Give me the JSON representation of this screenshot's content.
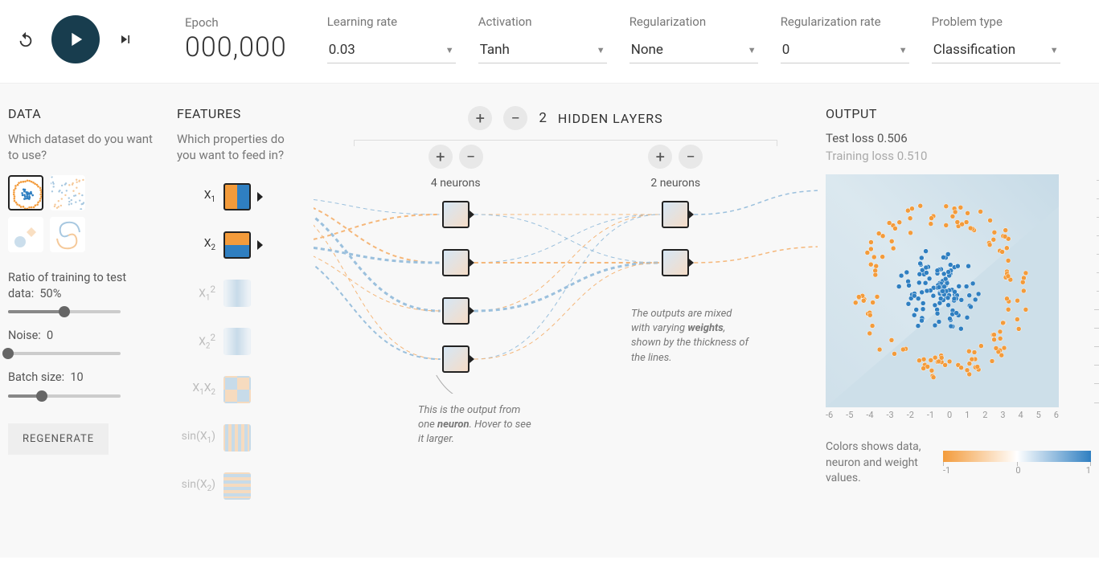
{
  "colors": {
    "orange": "#f39b3b",
    "blue": "#2f7fc1",
    "blue_light": "#a8c8e0",
    "orange_light": "#f5c99a",
    "play_bg": "#183d4e"
  },
  "top": {
    "epoch_label": "Epoch",
    "epoch_value": "000,000",
    "selects": [
      {
        "label": "Learning rate",
        "value": "0.03"
      },
      {
        "label": "Activation",
        "value": "Tanh"
      },
      {
        "label": "Regularization",
        "value": "None"
      },
      {
        "label": "Regularization rate",
        "value": "0"
      },
      {
        "label": "Problem type",
        "value": "Classification"
      }
    ]
  },
  "data_panel": {
    "title": "DATA",
    "subtitle": "Which dataset do you want to use?",
    "datasets": [
      {
        "id": "circle",
        "selected": true
      },
      {
        "id": "xor",
        "selected": false
      },
      {
        "id": "gauss",
        "selected": false
      },
      {
        "id": "spiral",
        "selected": false
      }
    ],
    "sliders": [
      {
        "label_prefix": "Ratio of training to test data:",
        "value_text": "50%",
        "pos": 0.5
      },
      {
        "label_prefix": "Noise:",
        "value_text": "0",
        "pos": 0.0
      },
      {
        "label_prefix": "Batch size:",
        "value_text": "10",
        "pos": 0.3
      }
    ],
    "regen_label": "REGENERATE"
  },
  "features_panel": {
    "title": "FEATURES",
    "subtitle": "Which properties do you want to feed in?",
    "features": [
      {
        "label_html": "X<sub>1</sub>",
        "active": true,
        "fill": "h-split"
      },
      {
        "label_html": "X<sub>2</sub>",
        "active": true,
        "fill": "v-split"
      },
      {
        "label_html": "X<sub>1</sub><sup>2</sup>",
        "active": false,
        "fill": "blue-soft"
      },
      {
        "label_html": "X<sub>2</sub><sup>2</sup>",
        "active": false,
        "fill": "blue-soft"
      },
      {
        "label_html": "X<sub>1</sub>X<sub>2</sub>",
        "active": false,
        "fill": "checker"
      },
      {
        "label_html": "sin(X<sub>1</sub>)",
        "active": false,
        "fill": "v-stripes"
      },
      {
        "label_html": "sin(X<sub>2</sub>)",
        "active": false,
        "fill": "h-stripes"
      }
    ]
  },
  "network": {
    "hidden_count": 2,
    "hidden_label": "HIDDEN LAYERS",
    "layers": [
      {
        "neurons": 4,
        "label": "4 neurons"
      },
      {
        "neurons": 2,
        "label": "2 neurons"
      }
    ],
    "callout1": "This is the output from one <b>neuron</b>. Hover to see it larger.",
    "callout2": "The outputs are mixed with varying <b>weights</b>, shown by the thickness of the lines.",
    "link_style": {
      "orange": "#f5b77a",
      "blue": "#9bc0dd",
      "dash": "5,4"
    }
  },
  "output_panel": {
    "title": "OUTPUT",
    "test_loss_label": "Test loss",
    "test_loss_value": "0.506",
    "train_loss_label": "Training loss",
    "train_loss_value": "0.510",
    "axis_range": [
      -6,
      6
    ],
    "axis_ticks": [
      -6,
      -5,
      -4,
      -3,
      -2,
      -1,
      0,
      1,
      2,
      3,
      4,
      5,
      6
    ],
    "legend_text": "Colors shows data, neuron and weight values.",
    "legend_ticks": [
      "-1",
      "0",
      "1"
    ],
    "data_points_pattern": "circle"
  }
}
